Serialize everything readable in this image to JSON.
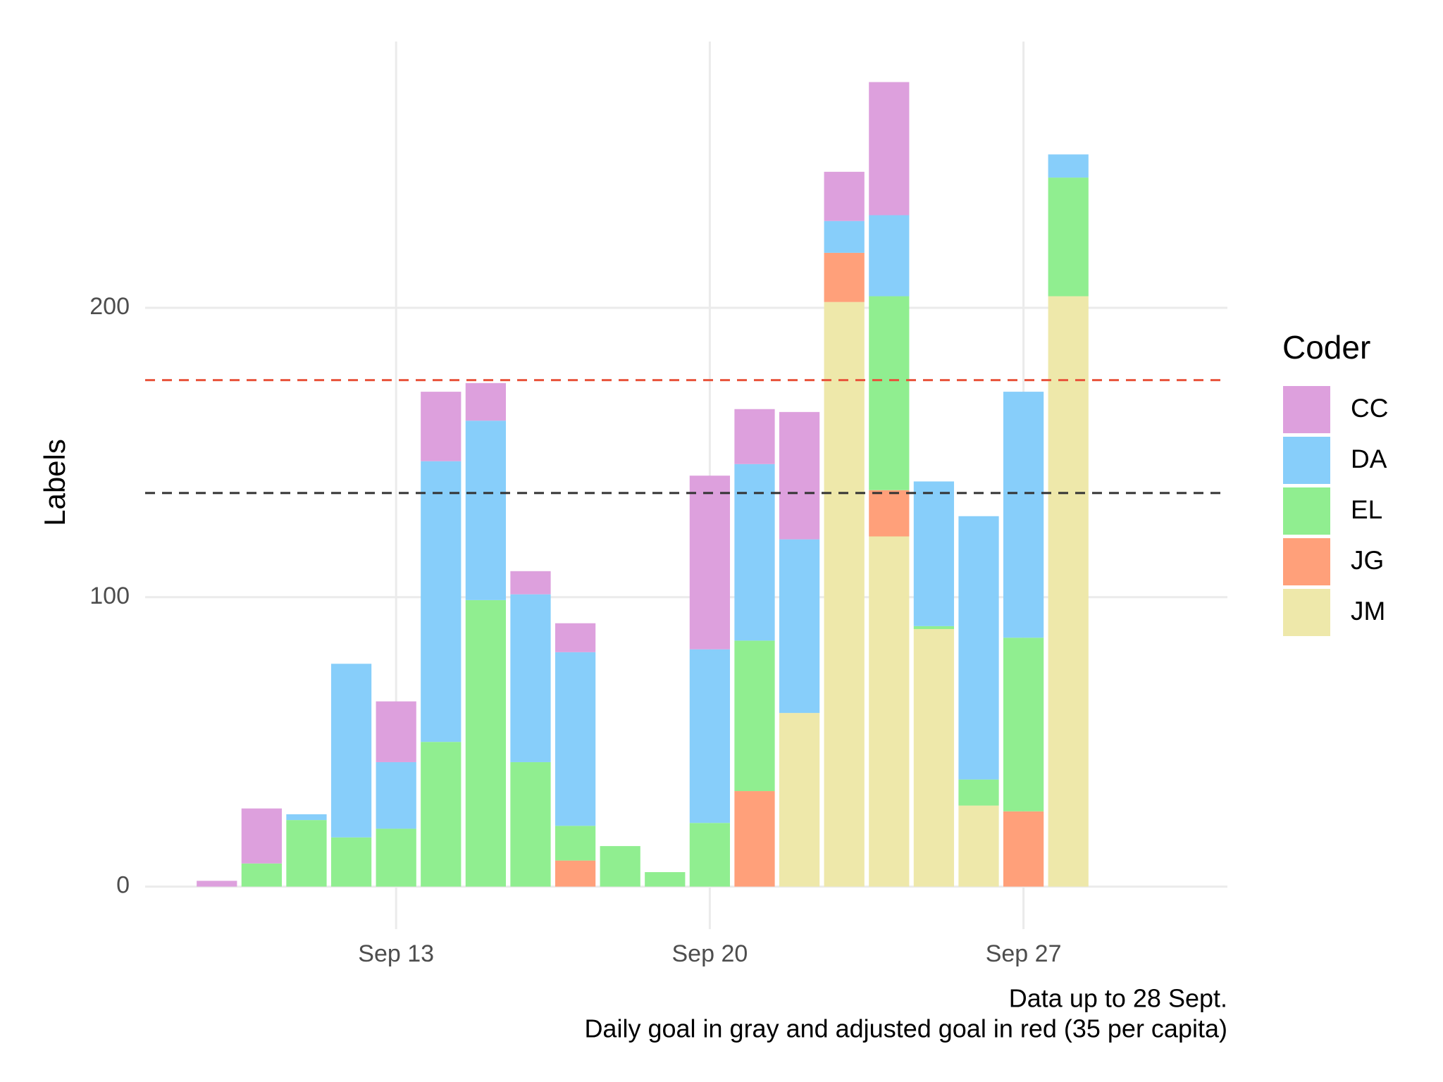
{
  "chart_data": {
    "type": "bar",
    "stacked": true,
    "y_label": "Labels",
    "caption": [
      "Data up to 28 Sept.",
      "Daily goal in gray and adjusted goal in red (35 per capita)"
    ],
    "legend_title": "Coder",
    "legend_position": "right",
    "grid": true,
    "x": [
      9,
      10,
      11,
      12,
      13,
      14,
      15,
      16,
      17,
      18,
      19,
      20,
      21,
      22,
      23,
      24,
      25,
      26,
      27,
      28
    ],
    "xlim": [
      7.4,
      31.55
    ],
    "xticks": [
      {
        "value": 13,
        "label": "Sep 13"
      },
      {
        "value": 20,
        "label": "Sep 20"
      },
      {
        "value": 27,
        "label": "Sep 27"
      }
    ],
    "ylim": [
      -14.7,
      292
    ],
    "yticks": [
      0,
      100,
      200
    ],
    "series": [
      {
        "name": "CC",
        "color": "#dda0dd",
        "values": [
          2,
          19,
          0,
          0,
          21,
          24,
          13,
          8,
          10,
          0,
          0,
          60,
          19,
          44,
          17,
          46,
          0,
          0,
          0,
          0
        ]
      },
      {
        "name": "DA",
        "color": "#87cefa",
        "values": [
          0,
          0,
          2,
          60,
          23,
          97,
          62,
          58,
          60,
          0,
          0,
          60,
          61,
          60,
          11,
          28,
          50,
          91,
          85,
          8
        ]
      },
      {
        "name": "EL",
        "color": "#90ee90",
        "values": [
          0,
          8,
          23,
          17,
          20,
          50,
          99,
          43,
          12,
          14,
          5,
          22,
          52,
          0,
          0,
          67,
          1,
          9,
          60,
          41
        ]
      },
      {
        "name": "JG",
        "color": "#ffa07a",
        "values": [
          0,
          0,
          0,
          0,
          0,
          0,
          0,
          0,
          9,
          0,
          0,
          0,
          33,
          0,
          17,
          16,
          0,
          0,
          26,
          0
        ]
      },
      {
        "name": "JM",
        "color": "#eee8aa",
        "values": [
          0,
          0,
          0,
          0,
          0,
          0,
          0,
          0,
          0,
          0,
          0,
          0,
          0,
          60,
          202,
          121,
          89,
          28,
          0,
          204
        ]
      }
    ],
    "reference_lines": [
      {
        "value": 136,
        "color": "#333333"
      },
      {
        "value": 175,
        "color": "#e8533b"
      }
    ]
  }
}
